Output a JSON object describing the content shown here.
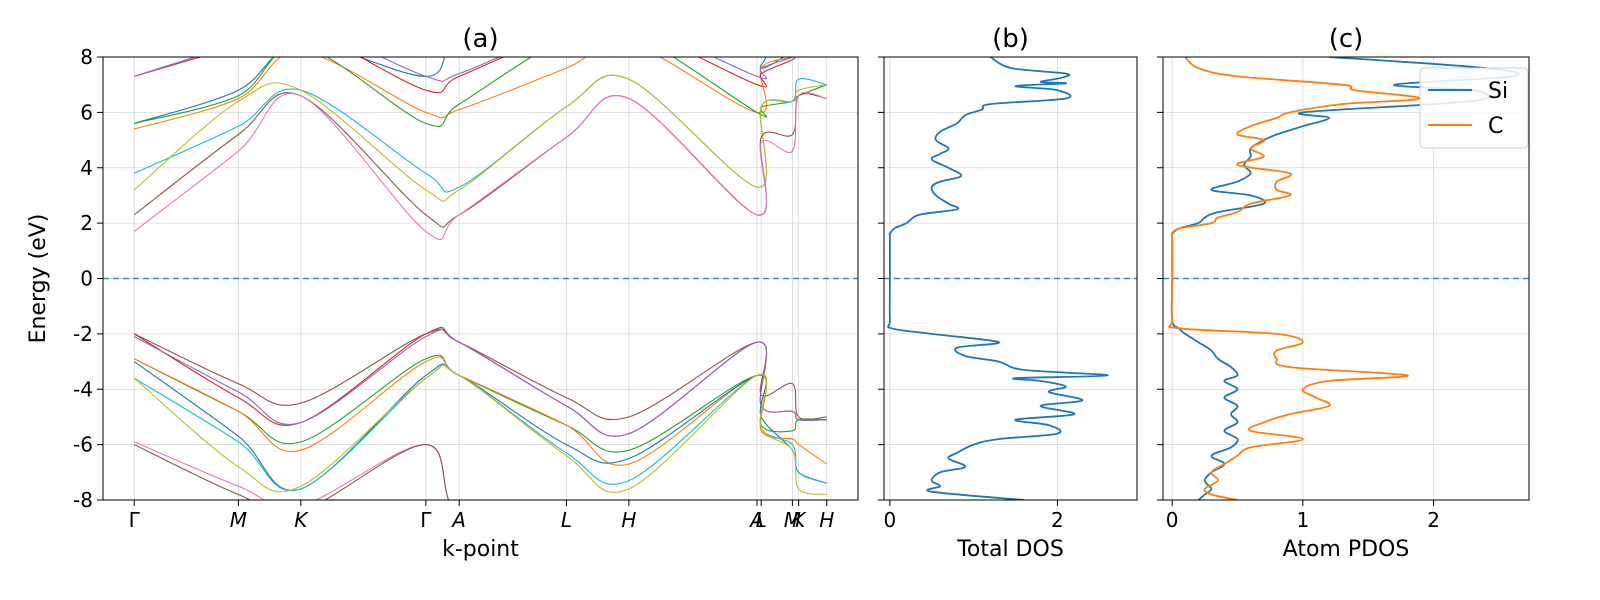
{
  "chart_data": [
    {
      "type": "line",
      "panel": "a",
      "title": "(a)",
      "xlabel": "k-point",
      "ylabel": "Energy (eV)",
      "ylim": [
        -8,
        8
      ],
      "yticks": [
        -8,
        -6,
        -4,
        -2,
        0,
        2,
        4,
        6,
        8
      ],
      "grid": true,
      "fermi_level": 0,
      "kpoint_labels": [
        "Γ",
        "M",
        "K",
        "Γ",
        "A",
        "L",
        "H",
        "A",
        "L",
        "M",
        "K",
        "H"
      ],
      "kpoint_positions": [
        0,
        1,
        1.6,
        2.8,
        3.12,
        4.15,
        4.75,
        5.98,
        6.02,
        6.32,
        6.38,
        6.65
      ],
      "xlim": [
        -0.3,
        6.95
      ],
      "series": [
        {
          "color": "#1f77b4",
          "x": [
            0,
            1,
            1.6,
            2.8,
            3.12,
            4.15,
            4.75,
            5.98,
            6.02,
            6.32,
            6.38,
            6.65
          ],
          "y": [
            5.6,
            6.8,
            8.5,
            7.3,
            8.6,
            8.7,
            8.9,
            8.4,
            7.6,
            8.2,
            8.3,
            8.4
          ]
        },
        {
          "color": "#ff7f0e",
          "x": [
            0,
            1,
            1.6,
            2.8,
            3.12,
            4.15,
            4.75,
            5.98,
            6.02,
            6.32,
            6.38,
            6.65
          ],
          "y": [
            5.4,
            6.5,
            8.2,
            6.0,
            6.1,
            7.6,
            8.5,
            6.0,
            7.6,
            8.0,
            8.2,
            8.1
          ]
        },
        {
          "color": "#2ca02c",
          "x": [
            0,
            1,
            1.6,
            2.8,
            3.12,
            4.15,
            4.75,
            5.98,
            6.02,
            6.32,
            6.38,
            6.65
          ],
          "y": [
            5.6,
            6.6,
            8.4,
            5.6,
            6.3,
            8.7,
            8.9,
            6.0,
            6.2,
            6.4,
            6.6,
            7.0
          ]
        },
        {
          "color": "#d62728",
          "x": [
            0,
            1,
            1.6,
            2.8,
            3.12,
            4.15,
            4.75,
            5.98,
            6.02,
            6.32,
            6.38,
            6.65
          ],
          "y": [
            7.3,
            8.4,
            9.0,
            6.8,
            7.3,
            8.9,
            9.1,
            7.0,
            7.4,
            7.9,
            8.1,
            8.5
          ]
        },
        {
          "color": "#9467bd",
          "x": [
            0,
            1,
            1.6,
            2.8,
            3.12,
            4.15,
            4.75,
            5.98,
            6.02,
            6.32,
            6.38,
            6.65
          ],
          "y": [
            7.3,
            8.5,
            9.2,
            7.3,
            7.4,
            9.0,
            9.3,
            7.3,
            7.6,
            8.0,
            8.2,
            8.6
          ]
        },
        {
          "color": "#17becf",
          "x": [
            0,
            1,
            1.6,
            2.8,
            3.12,
            4.15,
            4.75,
            5.98,
            6.02,
            6.32,
            6.38,
            6.65
          ],
          "y": [
            3.8,
            5.5,
            6.8,
            3.8,
            3.3,
            6.2,
            7.2,
            3.3,
            6.2,
            6.4,
            7.2,
            7.0
          ]
        },
        {
          "color": "#bcbd22",
          "x": [
            0,
            1,
            1.6,
            2.8,
            3.12,
            4.15,
            4.75,
            5.98,
            6.02,
            6.32,
            6.38,
            6.65
          ],
          "y": [
            3.2,
            6.4,
            6.8,
            3.2,
            3.2,
            6.2,
            7.2,
            3.3,
            6.2,
            6.4,
            6.8,
            7.0
          ]
        },
        {
          "color": "#8c564b",
          "x": [
            0,
            1,
            1.6,
            2.8,
            3.12,
            4.15,
            4.75,
            5.98,
            6.02,
            6.32,
            6.38,
            6.65
          ],
          "y": [
            2.3,
            5.2,
            6.6,
            2.3,
            2.3,
            5.1,
            6.5,
            2.3,
            5.1,
            5.2,
            6.6,
            6.5
          ]
        },
        {
          "color": "#e377c2",
          "x": [
            0,
            1,
            1.6,
            2.8,
            3.12,
            4.15,
            4.75,
            5.98,
            6.02,
            6.32,
            6.38,
            6.65
          ],
          "y": [
            1.7,
            4.6,
            6.6,
            1.7,
            2.3,
            5.1,
            6.5,
            2.3,
            4.9,
            4.6,
            6.6,
            6.5
          ]
        },
        {
          "color": "#8c564b",
          "x": [
            0,
            1,
            1.6,
            2.8,
            3.12,
            4.15,
            4.75,
            5.98,
            6.02,
            6.32,
            6.38,
            6.65
          ],
          "y": [
            -2.0,
            -3.8,
            -4.5,
            -2.0,
            -2.3,
            -4.3,
            -5.0,
            -2.3,
            -4.2,
            -3.8,
            -5.0,
            -5.0
          ]
        },
        {
          "color": "#d62728",
          "x": [
            0,
            1,
            1.6,
            2.8,
            3.12,
            4.15,
            4.75,
            5.98,
            6.02,
            6.32,
            6.38,
            6.65
          ],
          "y": [
            -2.0,
            -4.3,
            -5.2,
            -2.0,
            -2.3,
            -4.6,
            -5.6,
            -2.3,
            -4.6,
            -4.8,
            -5.1,
            -5.1
          ]
        },
        {
          "color": "#9467bd",
          "x": [
            0,
            1,
            1.6,
            2.8,
            3.12,
            4.15,
            4.75,
            5.98,
            6.02,
            6.32,
            6.38,
            6.65
          ],
          "y": [
            -2.1,
            -4.1,
            -5.2,
            -2.1,
            -2.3,
            -4.6,
            -5.6,
            -2.3,
            -4.6,
            -4.8,
            -5.1,
            -5.1
          ]
        },
        {
          "color": "#2ca02c",
          "x": [
            0,
            1,
            1.6,
            2.8,
            3.12,
            4.15,
            4.75,
            5.98,
            6.02,
            6.32,
            6.38,
            6.65
          ],
          "y": [
            -2.9,
            -4.8,
            -5.9,
            -2.9,
            -3.5,
            -5.3,
            -6.2,
            -3.5,
            -5.3,
            -5.5,
            -5.1,
            -5.1
          ]
        },
        {
          "color": "#ff7f0e",
          "x": [
            0,
            1,
            1.6,
            2.8,
            3.12,
            4.15,
            4.75,
            5.98,
            6.02,
            6.32,
            6.38,
            6.65
          ],
          "y": [
            -2.9,
            -4.8,
            -6.2,
            -3.0,
            -3.5,
            -5.3,
            -6.7,
            -3.5,
            -5.5,
            -5.8,
            -6.0,
            -6.7
          ]
        },
        {
          "color": "#1f77b4",
          "x": [
            0,
            1,
            1.6,
            2.8,
            3.12,
            4.15,
            4.75,
            5.98,
            6.02,
            6.32,
            6.38,
            6.65
          ],
          "y": [
            -3.0,
            -5.7,
            -7.6,
            -3.5,
            -3.5,
            -6.0,
            -6.5,
            -3.5,
            -5.0,
            -6.2,
            -7.0,
            -7.4
          ]
        },
        {
          "color": "#17becf",
          "x": [
            0,
            1,
            1.6,
            2.8,
            3.12,
            4.15,
            4.75,
            5.98,
            6.02,
            6.32,
            6.38,
            6.65
          ],
          "y": [
            -3.6,
            -5.9,
            -7.6,
            -3.6,
            -3.5,
            -6.3,
            -7.3,
            -3.5,
            -5.4,
            -6.0,
            -7.0,
            -7.4
          ]
        },
        {
          "color": "#bcbd22",
          "x": [
            0,
            1,
            1.6,
            2.8,
            3.12,
            4.15,
            4.75,
            5.98,
            6.02,
            6.32,
            6.38,
            6.65
          ],
          "y": [
            -3.6,
            -6.8,
            -7.5,
            -3.6,
            -3.5,
            -6.4,
            -7.6,
            -3.5,
            -5.4,
            -6.2,
            -7.6,
            -7.8
          ]
        },
        {
          "color": "#e377c2",
          "x": [
            0,
            1,
            1.6,
            2.8,
            3.12,
            4.15,
            4.75,
            5.98,
            6.02,
            6.32,
            6.38,
            6.65
          ],
          "y": [
            -5.9,
            -7.5,
            -8.2,
            -6.0,
            -8.5,
            -8.8,
            -8.8,
            -8.6,
            -8.6,
            -8.7,
            -8.8,
            -8.8
          ]
        },
        {
          "color": "#8c564b",
          "x": [
            0,
            1,
            1.6,
            2.8,
            3.12,
            4.15,
            4.75,
            5.98,
            6.02,
            6.32,
            6.38,
            6.65
          ],
          "y": [
            -6.0,
            -7.8,
            -8.4,
            -6.0,
            -8.5,
            -8.8,
            -8.8,
            -8.6,
            -8.6,
            -8.7,
            -8.8,
            -8.8
          ]
        }
      ]
    },
    {
      "type": "line",
      "panel": "b",
      "title": "(b)",
      "xlabel": "Total DOS",
      "xlim": [
        -0.07,
        2.95
      ],
      "xticks": [
        0,
        2
      ],
      "ylim": [
        -8,
        8
      ],
      "grid": true,
      "fermi_level": 0,
      "series": [
        {
          "color": "#1f77b4",
          "energy": [
            8,
            7.6,
            7.4,
            7.25,
            7.1,
            7.05,
            6.95,
            6.8,
            6.5,
            6.3,
            6.1,
            5.9,
            5.6,
            5.3,
            5.0,
            4.7,
            4.5,
            4.3,
            4.0,
            3.7,
            3.5,
            3.3,
            3.0,
            2.7,
            2.5,
            2.3,
            2.0,
            1.8,
            1.6,
            1.5,
            0,
            -1.5,
            -1.8,
            -2.0,
            -2.3,
            -2.5,
            -2.8,
            -3.0,
            -3.3,
            -3.5,
            -3.6,
            -3.7,
            -3.9,
            -4.1,
            -4.4,
            -4.6,
            -4.9,
            -5.1,
            -5.3,
            -5.6,
            -5.8,
            -6.0,
            -6.3,
            -6.5,
            -6.8,
            -7.0,
            -7.3,
            -7.5,
            -7.7,
            -8.0
          ],
          "values": [
            1.2,
            1.45,
            2.1,
            2.05,
            1.8,
            2.1,
            1.5,
            2.0,
            2.1,
            1.2,
            1.1,
            0.9,
            0.8,
            0.6,
            0.55,
            0.7,
            0.6,
            0.5,
            0.7,
            0.85,
            0.6,
            0.5,
            0.55,
            0.7,
            0.8,
            0.35,
            0.2,
            0.05,
            0.0,
            0.0,
            0.0,
            0.0,
            0.02,
            0.5,
            1.3,
            0.8,
            0.9,
            1.3,
            1.6,
            2.6,
            1.5,
            1.8,
            2.1,
            1.9,
            2.3,
            1.8,
            2.2,
            1.5,
            1.9,
            2.0,
            1.3,
            1.0,
            0.8,
            0.7,
            0.9,
            0.6,
            0.5,
            0.6,
            0.5,
            1.6
          ]
        }
      ]
    },
    {
      "type": "line",
      "panel": "c",
      "title": "(c)",
      "xlabel": "Atom PDOS",
      "xlim": [
        -0.07,
        2.73
      ],
      "xticks": [
        0,
        1,
        2
      ],
      "ylim": [
        -8,
        8
      ],
      "grid": true,
      "fermi_level": 0,
      "legend": {
        "placement": "top-right",
        "entries": [
          "Si",
          "C"
        ]
      },
      "series": [
        {
          "name": "Si",
          "color": "#1f77b4",
          "energy": [
            8,
            7.6,
            7.3,
            7.0,
            6.8,
            6.5,
            6.3,
            6.0,
            5.8,
            5.5,
            5.2,
            5.0,
            4.7,
            4.4,
            4.1,
            3.8,
            3.5,
            3.2,
            3.0,
            2.7,
            2.4,
            2.2,
            2.0,
            1.8,
            1.6,
            1.5,
            0,
            -1.5,
            -1.8,
            -2.0,
            -2.3,
            -2.6,
            -2.9,
            -3.2,
            -3.5,
            -3.7,
            -4.0,
            -4.3,
            -4.6,
            -4.9,
            -5.2,
            -5.5,
            -5.8,
            -6.1,
            -6.4,
            -6.7,
            -7.0,
            -7.3,
            -7.6,
            -7.8,
            -8.0
          ],
          "values": [
            1.2,
            2.4,
            2.6,
            1.7,
            2.3,
            2.4,
            2.0,
            1.0,
            1.2,
            1.0,
            0.8,
            0.7,
            0.6,
            0.6,
            0.55,
            0.6,
            0.5,
            0.3,
            0.6,
            0.7,
            0.35,
            0.25,
            0.2,
            0.05,
            0.0,
            0.0,
            0.0,
            0.0,
            0.05,
            0.1,
            0.2,
            0.3,
            0.35,
            0.45,
            0.5,
            0.4,
            0.5,
            0.4,
            0.5,
            0.45,
            0.5,
            0.4,
            0.5,
            0.45,
            0.3,
            0.4,
            0.3,
            0.25,
            0.3,
            0.25,
            0.2
          ]
        },
        {
          "name": "C",
          "color": "#ff7f0e",
          "energy": [
            8,
            7.6,
            7.3,
            7.0,
            6.8,
            6.5,
            6.3,
            6.0,
            5.8,
            5.5,
            5.2,
            5.0,
            4.7,
            4.4,
            4.1,
            3.8,
            3.5,
            3.2,
            3.0,
            2.7,
            2.4,
            2.2,
            2.0,
            1.8,
            1.6,
            1.5,
            0,
            -1.5,
            -1.8,
            -2.0,
            -2.3,
            -2.6,
            -2.9,
            -3.2,
            -3.5,
            -3.7,
            -4.0,
            -4.3,
            -4.6,
            -4.9,
            -5.2,
            -5.5,
            -5.8,
            -6.1,
            -6.4,
            -6.7,
            -7.0,
            -7.3,
            -7.6,
            -7.8,
            -8.0
          ],
          "values": [
            0.1,
            0.2,
            0.5,
            1.3,
            1.4,
            1.9,
            1.3,
            0.9,
            0.8,
            0.6,
            0.5,
            0.7,
            0.6,
            0.7,
            0.5,
            0.9,
            0.8,
            0.8,
            0.9,
            0.6,
            0.5,
            0.35,
            0.3,
            0.05,
            0.0,
            0.0,
            0.0,
            0.0,
            0.05,
            0.8,
            1.0,
            0.8,
            0.8,
            0.9,
            1.8,
            1.2,
            1.0,
            1.1,
            1.2,
            0.9,
            0.7,
            0.6,
            1.0,
            0.6,
            0.5,
            0.4,
            0.3,
            0.35,
            0.25,
            0.3,
            0.5
          ]
        }
      ]
    }
  ]
}
